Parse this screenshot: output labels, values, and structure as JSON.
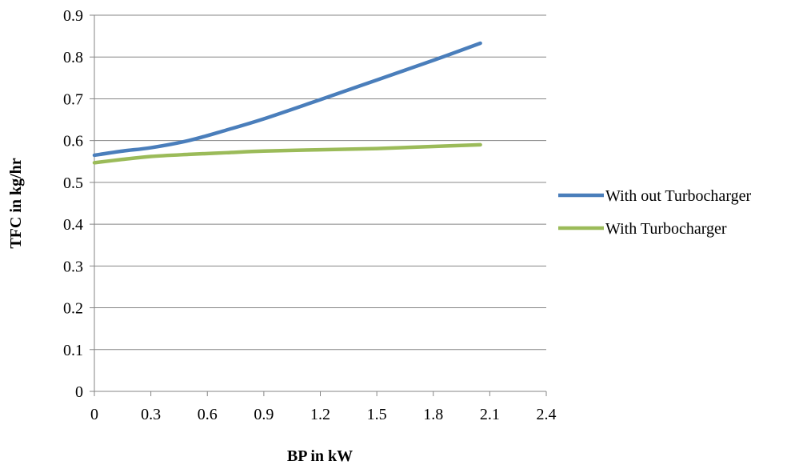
{
  "chart_data": {
    "type": "line",
    "title": "",
    "xlabel": "BP in kW",
    "ylabel": "TFC in kg/hr",
    "xlim": [
      0,
      2.4
    ],
    "ylim": [
      0,
      0.9
    ],
    "x_ticks": [
      "0",
      "0.3",
      "0.6",
      "0.9",
      "1.2",
      "1.5",
      "1.8",
      "2.1",
      "2.4"
    ],
    "y_ticks": [
      "0",
      "0.1",
      "0.2",
      "0.3",
      "0.4",
      "0.5",
      "0.6",
      "0.7",
      "0.8",
      "0.9"
    ],
    "grid": "horizontal",
    "legend_position": "right",
    "series": [
      {
        "name": "With out Turbocharger",
        "color": "#4a7ebb",
        "x": [
          0,
          0.15,
          0.3,
          0.5,
          0.7,
          0.9,
          1.2,
          1.5,
          1.8,
          2.05
        ],
        "y": [
          0.565,
          0.575,
          0.583,
          0.6,
          0.625,
          0.652,
          0.698,
          0.745,
          0.792,
          0.833
        ]
      },
      {
        "name": "With Turbocharger",
        "color": "#9bbb59",
        "x": [
          0,
          0.15,
          0.3,
          0.5,
          0.7,
          0.9,
          1.2,
          1.5,
          1.8,
          2.05
        ],
        "y": [
          0.547,
          0.555,
          0.562,
          0.567,
          0.571,
          0.575,
          0.578,
          0.581,
          0.586,
          0.59
        ]
      }
    ]
  }
}
